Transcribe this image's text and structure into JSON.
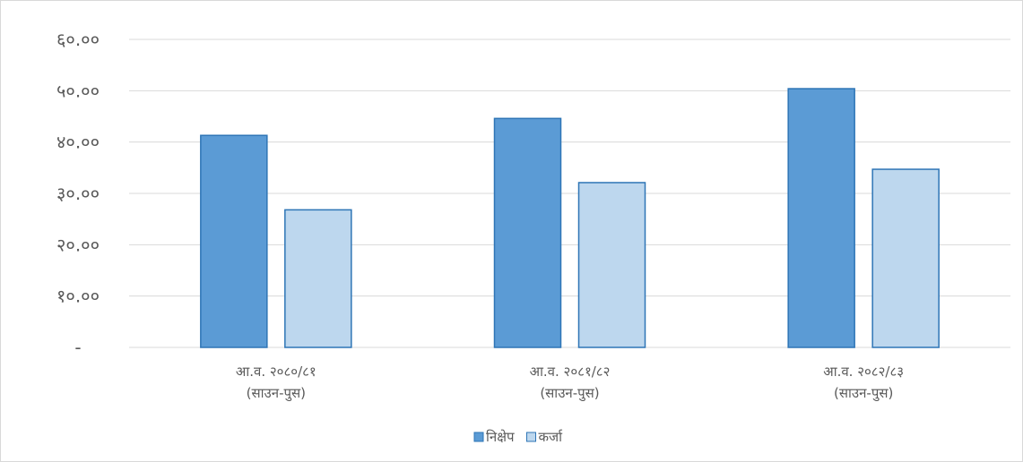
{
  "chart_data": {
    "type": "bar",
    "categories": [
      [
        "आ.व. २०८०/८१",
        "(साउन-पुस)"
      ],
      [
        "आ.व. २०८१/८२",
        "(साउन-पुस)"
      ],
      [
        "आ.व. २०८२/८३",
        "(साउन-पुस)"
      ]
    ],
    "series": [
      {
        "name": "निक्षेप",
        "values": [
          41.3,
          44.6,
          50.4
        ],
        "color": "#5b9bd5",
        "stroke": "#2e75b6"
      },
      {
        "name": "कर्जा",
        "values": [
          26.8,
          32.1,
          34.7
        ],
        "color": "#bdd7ee",
        "stroke": "#2e75b6"
      }
    ],
    "y_ticks": [
      "-",
      "१०.००",
      "२०.००",
      "३०.००",
      "४०.००",
      "५०.००",
      "६०.००"
    ],
    "ylim": [
      0,
      60
    ],
    "y_step": 10,
    "grid": true,
    "legend_position": "bottom",
    "title": "",
    "xlabel": "",
    "ylabel": ""
  }
}
